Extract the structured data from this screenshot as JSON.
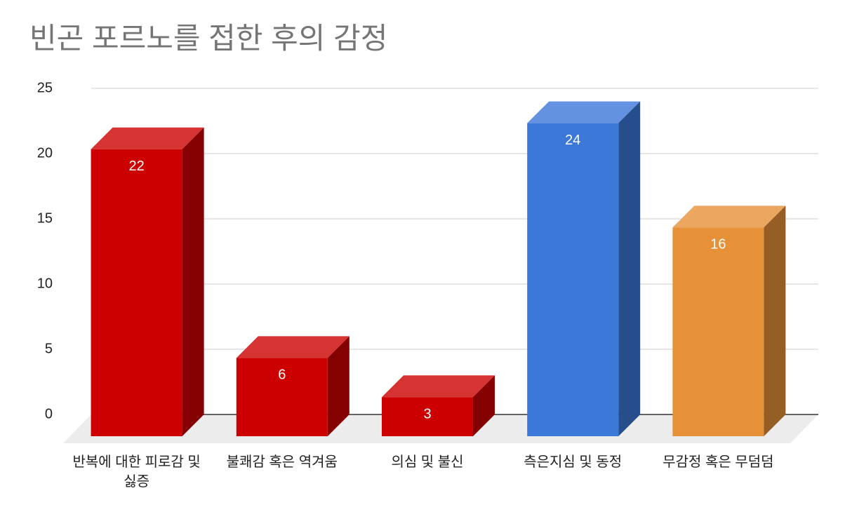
{
  "chart_data": {
    "type": "bar3d",
    "title": "빈곤 포르노를 접한 후의 감정",
    "categories": [
      "반복에 대한 피로감 및 싫증",
      "불쾌감 혹은 역겨움",
      "의심 및 불신",
      "측은지심 및 동정",
      "무감정 혹은 무덤덤"
    ],
    "values": [
      22,
      6,
      3,
      24,
      16
    ],
    "colors": [
      "#cc0000",
      "#cc0000",
      "#cc0000",
      "#3c78d8",
      "#e69138"
    ],
    "ylim": [
      0,
      25
    ],
    "yticks": [
      0,
      5,
      10,
      15,
      20,
      25
    ],
    "grid": true
  }
}
